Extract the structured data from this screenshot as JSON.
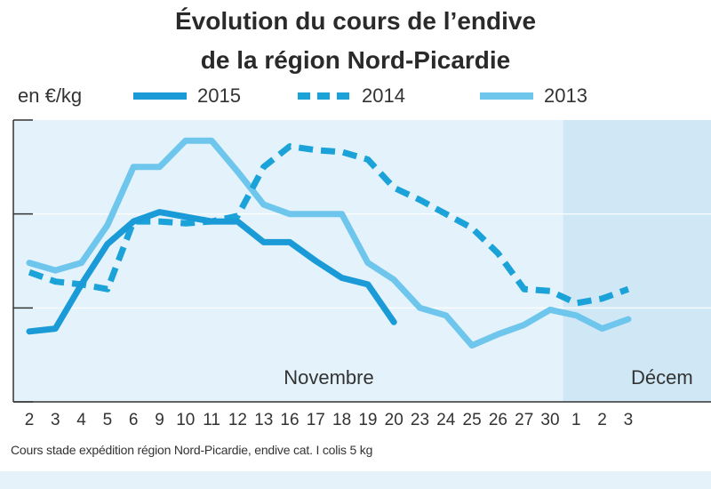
{
  "chart_data": {
    "type": "line",
    "title_line1": "Évolution du cours de l’endive",
    "title_line2": "de la région Nord-Picardie",
    "unit_label": "en €/kg",
    "month_labels": [
      "Novembre",
      "Décem"
    ],
    "footnote": "Cours stade expédition région Nord-Picardie, endive cat. I colis 5 kg",
    "x_ticks": [
      "2",
      "3",
      "4",
      "5",
      "6",
      "9",
      "10",
      "11",
      "12",
      "13",
      "16",
      "17",
      "18",
      "19",
      "20",
      "23",
      "24",
      "25",
      "26",
      "27",
      "30",
      "1",
      "2",
      "3"
    ],
    "y_ticks": [
      "",
      "",
      ""
    ],
    "ylim": [
      0,
      3
    ],
    "grid": true,
    "series": [
      {
        "name": "2015",
        "color": "#1a9bd7",
        "dash": "solid",
        "values": [
          0.75,
          0.78,
          1.25,
          1.68,
          1.92,
          2.02,
          1.97,
          1.92,
          1.92,
          1.7,
          1.7,
          1.5,
          1.32,
          1.25,
          0.85,
          null,
          null,
          null,
          null,
          null,
          null,
          null,
          null,
          null
        ]
      },
      {
        "name": "2014",
        "color": "#1ba3d9",
        "dash": "dashed",
        "values": [
          1.38,
          1.28,
          1.25,
          1.2,
          1.92,
          1.92,
          1.9,
          1.92,
          1.98,
          2.5,
          2.72,
          2.68,
          2.66,
          2.58,
          2.28,
          2.15,
          2.0,
          1.85,
          1.58,
          1.2,
          1.18,
          1.05,
          1.1,
          1.2
        ]
      },
      {
        "name": "2013",
        "color": "#6ec6ed",
        "dash": "solid",
        "values": [
          1.48,
          1.4,
          1.48,
          1.88,
          2.5,
          2.5,
          2.78,
          2.78,
          2.45,
          2.1,
          2.0,
          2.0,
          2.0,
          1.48,
          1.3,
          1.0,
          0.92,
          0.6,
          0.72,
          0.82,
          0.98,
          0.92,
          0.78,
          0.88
        ]
      }
    ]
  }
}
